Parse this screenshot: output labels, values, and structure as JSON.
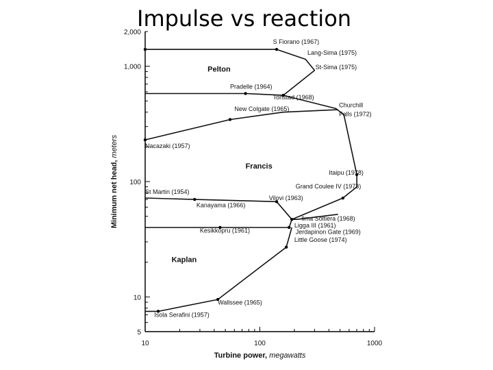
{
  "slide": {
    "title": "Impulse vs reaction"
  },
  "chart_data": {
    "type": "line",
    "x_scale": "log",
    "y_scale": "log",
    "xlim": [
      10,
      1000
    ],
    "ylim": [
      5,
      2000
    ],
    "x_ticks": [
      {
        "v": 10,
        "label": "10"
      },
      {
        "v": 100,
        "label": "100"
      },
      {
        "v": 1000,
        "label": "1000"
      }
    ],
    "y_ticks": [
      {
        "v": 5,
        "label": "5"
      },
      {
        "v": 10,
        "label": "10"
      },
      {
        "v": 100,
        "label": "100"
      },
      {
        "v": 1000,
        "label": "1,000"
      },
      {
        "v": 2000,
        "label": "2,000"
      }
    ],
    "xlabel": {
      "main": "Turbine power, ",
      "unit": "megawatts"
    },
    "ylabel": {
      "main": "Minimum net head, ",
      "unit": "meters"
    },
    "region_labels": [
      {
        "text": "Pelton",
        "x": 35,
        "y": 900
      },
      {
        "text": "Francis",
        "x": 75,
        "y": 130
      },
      {
        "text": "Kaplan",
        "x": 17,
        "y": 20
      }
    ],
    "series": [
      {
        "points": [
          [
            10,
            1400
          ],
          [
            140,
            1400
          ],
          [
            250,
            1150
          ],
          [
            300,
            920
          ],
          [
            160,
            560
          ],
          [
            75,
            580
          ],
          [
            10,
            580
          ]
        ]
      },
      {
        "points": [
          [
            160,
            560
          ],
          [
            460,
            430
          ],
          [
            540,
            380
          ],
          [
            700,
            115
          ],
          [
            700,
            90
          ],
          [
            530,
            72
          ],
          [
            190,
            47
          ],
          [
            180,
            40
          ]
        ]
      },
      {
        "points": [
          [
            10,
            230
          ],
          [
            55,
            345
          ],
          [
            160,
            400
          ],
          [
            480,
            420
          ]
        ]
      },
      {
        "points": [
          [
            10,
            72
          ],
          [
            27,
            70
          ],
          [
            140,
            67
          ],
          [
            190,
            47
          ]
        ]
      },
      {
        "points": [
          [
            10,
            40
          ],
          [
            45,
            40
          ],
          [
            180,
            40
          ]
        ]
      },
      {
        "points": [
          [
            10,
            7.5
          ],
          [
            13,
            7.5
          ],
          [
            43,
            9.5
          ],
          [
            170,
            27
          ],
          [
            190,
            40
          ]
        ]
      },
      {
        "points": [
          [
            190,
            47
          ],
          [
            210,
            47
          ],
          [
            480,
            52
          ]
        ]
      }
    ],
    "markers": [
      [
        10,
        1400
      ],
      [
        140,
        1400
      ],
      [
        75,
        580
      ],
      [
        160,
        560
      ],
      [
        10,
        230
      ],
      [
        55,
        345
      ],
      [
        700,
        115
      ],
      [
        530,
        72
      ],
      [
        27,
        70
      ],
      [
        140,
        67
      ],
      [
        190,
        47
      ],
      [
        45,
        40
      ],
      [
        180,
        40
      ],
      [
        170,
        27
      ],
      [
        43,
        9.5
      ],
      [
        13,
        7.5
      ]
    ],
    "annotations": [
      {
        "text": "S Fiorano (1967)",
        "x": 130,
        "y": 1560
      },
      {
        "text": "Lang-Sima (1975)",
        "x": 260,
        "y": 1260
      },
      {
        "text": "St-Sima (1975)",
        "x": 305,
        "y": 940
      },
      {
        "text": "Pradelle (1964)",
        "x": 55,
        "y": 640
      },
      {
        "text": "Tonstad (1968)",
        "x": 130,
        "y": 515
      },
      {
        "text": "New Colgate (1965)",
        "x": 60,
        "y": 410
      },
      {
        "text": "Churchill",
        "x": 490,
        "y": 440
      },
      {
        "text": "Falls (1972)",
        "x": 490,
        "y": 370
      },
      {
        "text": "Nacazaki (1957)",
        "x": 10,
        "y": 195
      },
      {
        "text": "Itaipu (1978)",
        "x": 400,
        "y": 115
      },
      {
        "text": "Grand Coulee IV (1973)",
        "x": 205,
        "y": 87
      },
      {
        "text": "St Martin (1954)",
        "x": 10,
        "y": 78
      },
      {
        "text": "Vilovi (1963)",
        "x": 120,
        "y": 69
      },
      {
        "text": "Kanayama (1966)",
        "x": 28,
        "y": 60
      },
      {
        "text": "Ilma Soltiera (1968)",
        "x": 230,
        "y": 46
      },
      {
        "text": "Ligga III (1961)",
        "x": 200,
        "y": 40
      },
      {
        "text": "Kesikkopru (1961)",
        "x": 30,
        "y": 36
      },
      {
        "text": "Jerdapinon Gate (1969)",
        "x": 205,
        "y": 35
      },
      {
        "text": "Little Goose (1974)",
        "x": 200,
        "y": 30
      },
      {
        "text": "Wallssee (1965)",
        "x": 43,
        "y": 8.6
      },
      {
        "text": "Isola Serafini (1957)",
        "x": 12,
        "y": 6.7
      }
    ]
  }
}
